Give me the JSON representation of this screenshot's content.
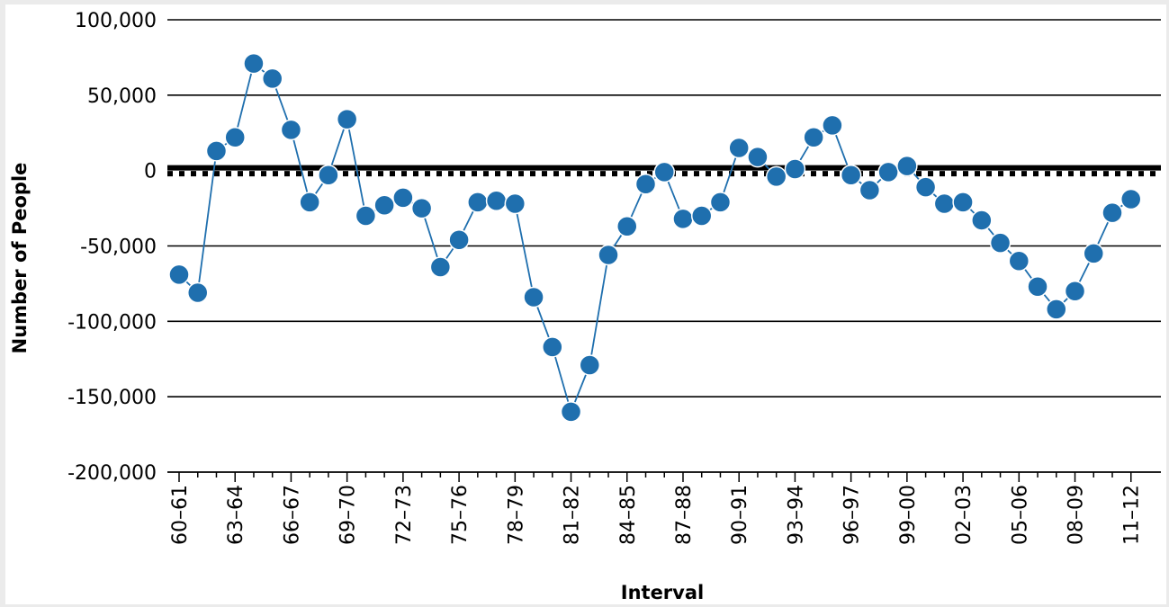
{
  "chart_data": {
    "type": "line",
    "title": "",
    "xlabel": "Interval",
    "ylabel": "Number of People",
    "ylim": [
      -200000,
      100000
    ],
    "yticks": [
      100000,
      50000,
      0,
      -50000,
      -100000,
      -150000,
      -200000
    ],
    "ytick_labels": [
      "100,000",
      "50,000",
      "0",
      "-50,000",
      "-100,000",
      "-150,000",
      "-200,000"
    ],
    "x": [
      "60–61",
      "61–62",
      "62–63",
      "63–64",
      "64–65",
      "65–66",
      "66–67",
      "67–68",
      "68–69",
      "69–70",
      "70–71",
      "71–72",
      "72–73",
      "73–74",
      "74–75",
      "75–76",
      "76–77",
      "77–78",
      "78–79",
      "79–80",
      "80–81",
      "81–82",
      "82–83",
      "83–84",
      "84–85",
      "85–86",
      "86–87",
      "87–88",
      "88–89",
      "89–90",
      "90–91",
      "91–92",
      "92–93",
      "93–94",
      "94–95",
      "95–96",
      "96–97",
      "97–98",
      "98–99",
      "99–00",
      "00–01",
      "01–02",
      "02–03",
      "03–04",
      "04–05",
      "05–06",
      "06–07",
      "07–08",
      "08–09",
      "09–10",
      "10–11",
      "11–12"
    ],
    "xtick_labels": [
      "60–61",
      "63–64",
      "66–67",
      "69–70",
      "72–73",
      "75–76",
      "78–79",
      "81–82",
      "84–85",
      "87–88",
      "90–91",
      "93–94",
      "96–97",
      "99–00",
      "02–03",
      "05–06",
      "08–09",
      "11–12"
    ],
    "values": [
      -69000,
      -81000,
      13000,
      22000,
      71000,
      61000,
      27000,
      -21000,
      -3000,
      34000,
      -30000,
      -23000,
      -18000,
      -25000,
      -64000,
      -46000,
      -21000,
      -20000,
      -22000,
      -84000,
      -117000,
      -160000,
      -129000,
      -56000,
      -37000,
      -9000,
      -1000,
      -32000,
      -30000,
      -21000,
      15000,
      9000,
      -4000,
      1000,
      22000,
      30000,
      -3000,
      -13000,
      -1000,
      3000,
      -11000,
      -22000,
      -21000,
      -33000,
      -48000,
      -60000,
      -77000,
      -92000,
      -80000,
      -55000,
      -28000,
      -19000
    ],
    "reference_line": {
      "y": 0,
      "style": "thick-dashed"
    },
    "grid": true,
    "colors": {
      "series": "#1f6fae",
      "grid": "#000000"
    }
  }
}
